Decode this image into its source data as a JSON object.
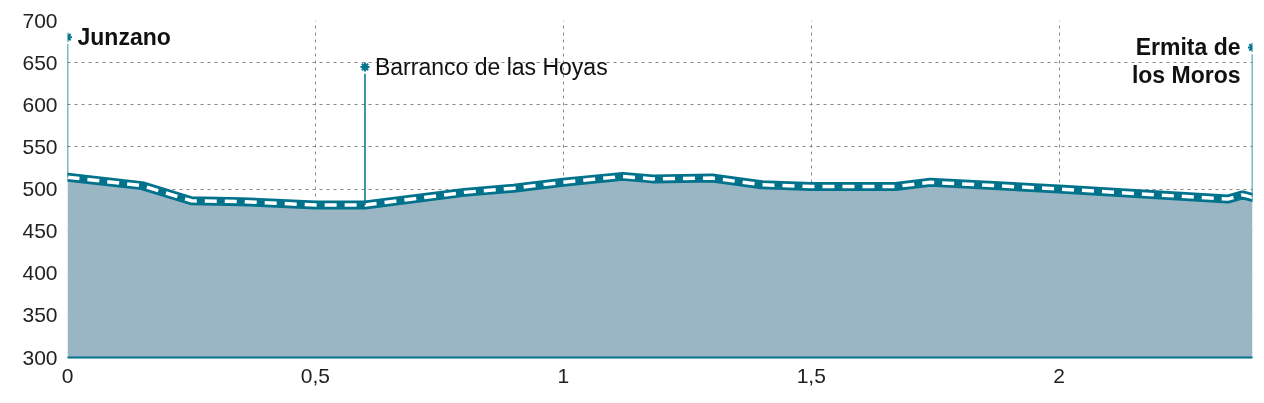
{
  "chart_data": {
    "type": "area",
    "x": [
      0,
      0.15,
      0.25,
      0.35,
      0.5,
      0.6,
      0.8,
      0.9,
      1.0,
      1.12,
      1.18,
      1.3,
      1.4,
      1.5,
      1.67,
      1.74,
      2.0,
      2.34,
      2.37,
      2.39
    ],
    "series": [
      {
        "color": "#00728c",
        "values": [
          514,
          504,
          486,
          485,
          481,
          481,
          496,
          501,
          508,
          515,
          512,
          513,
          505,
          503,
          503,
          508,
          500,
          488,
          493,
          490
        ]
      }
    ],
    "line_style": "dashed",
    "xlim": [
      0,
      2.39
    ],
    "ylim": [
      300,
      700
    ],
    "xticks": [
      0,
      {
        "value": 0.5,
        "label": "0,5"
      },
      1,
      {
        "value": 1.5,
        "label": "1,5"
      },
      2
    ],
    "yticks": [
      300,
      350,
      400,
      450,
      500,
      550,
      600,
      650,
      700
    ],
    "grid": true,
    "annotations": [
      {
        "text": "Junzano",
        "x": 0,
        "y": 514
      },
      {
        "text": "Barranco de las Hoyas",
        "x": 0.6,
        "y": 481
      },
      {
        "text": "Ermita de\nlos Moros",
        "x": 2.39,
        "y": 490
      }
    ]
  }
}
